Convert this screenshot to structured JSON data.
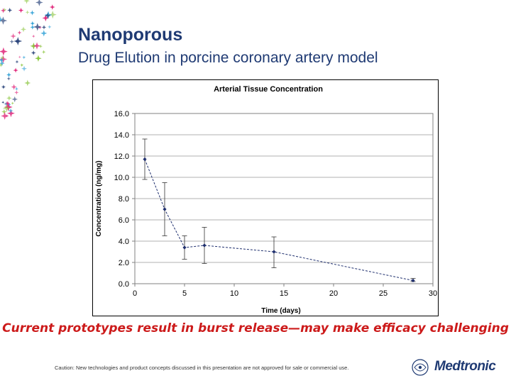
{
  "slide": {
    "title": "Nanoporous",
    "subtitle": "Drug Elution in porcine coronary artery model",
    "caption": "Current prototypes result in burst release—may make efficacy challenging",
    "disclaimer": "Caution: New technologies and product concepts discussed in this presentation are not approved for sale or commercial use.",
    "brand": "Medtronic",
    "logo_icon": "medtronic-logo-icon",
    "decor_icon": "sparkle-stars-icon",
    "colors": {
      "title": "#1f3a73",
      "caption": "#cc1a1a",
      "series": "#1f2f6e",
      "stars": [
        "#2b9fd6",
        "#8cc63f",
        "#e0267a",
        "#1f3a73"
      ]
    }
  },
  "chart_data": {
    "type": "line",
    "title": "Arterial Tissue Concentration",
    "xlabel": "Time (days)",
    "ylabel": "Concentration (ng/mg)",
    "xlim": [
      0,
      30
    ],
    "ylim": [
      0,
      16
    ],
    "xticks": [
      "0",
      "5",
      "10",
      "15",
      "20",
      "25",
      "30"
    ],
    "yticks": [
      "0.0",
      "2.0",
      "4.0",
      "6.0",
      "8.0",
      "10.0",
      "12.0",
      "14.0",
      "16.0"
    ],
    "grid": true,
    "legend": "none",
    "series": [
      {
        "points": [
          {
            "x": 1,
            "y": 11.7,
            "err_low": 9.8,
            "err_high": 13.6
          },
          {
            "x": 3,
            "y": 7.0,
            "err_low": 4.5,
            "err_high": 9.5
          },
          {
            "x": 5,
            "y": 3.4,
            "err_low": 2.3,
            "err_high": 4.5
          },
          {
            "x": 7,
            "y": 3.6,
            "err_low": 1.9,
            "err_high": 5.3
          },
          {
            "x": 14,
            "y": 3.0,
            "err_low": 1.5,
            "err_high": 4.4
          },
          {
            "x": 28,
            "y": 0.3,
            "err_low": 0.2,
            "err_high": 0.5
          }
        ]
      }
    ]
  }
}
